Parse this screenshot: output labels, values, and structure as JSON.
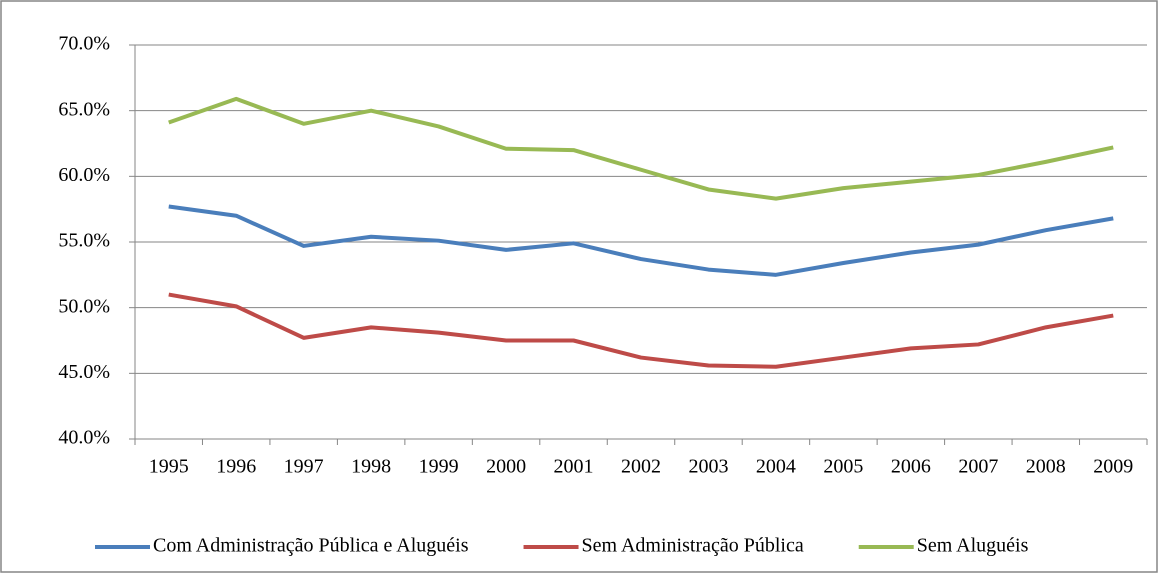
{
  "chart_data": {
    "type": "line",
    "categories": [
      "1995",
      "1996",
      "1997",
      "1998",
      "1999",
      "2000",
      "2001",
      "2002",
      "2003",
      "2004",
      "2005",
      "2006",
      "2007",
      "2008",
      "2009"
    ],
    "series": [
      {
        "name": "Com Administração Pública e Aluguéis",
        "color": "#4a7ebb",
        "values": [
          57.7,
          57.0,
          54.7,
          55.4,
          55.1,
          54.4,
          54.9,
          53.7,
          52.9,
          52.5,
          53.4,
          54.2,
          54.8,
          55.9,
          56.8
        ]
      },
      {
        "name": "Sem Administração Pública",
        "color": "#be4b48",
        "values": [
          51.0,
          50.1,
          47.7,
          48.5,
          48.1,
          47.5,
          47.5,
          46.2,
          45.6,
          45.5,
          46.2,
          46.9,
          47.2,
          48.5,
          49.4
        ]
      },
      {
        "name": "Sem Aluguéis",
        "color": "#98b954",
        "values": [
          64.1,
          65.9,
          64.0,
          65.0,
          63.8,
          62.1,
          62.0,
          60.5,
          59.0,
          58.3,
          59.1,
          59.6,
          60.1,
          61.1,
          62.2
        ]
      }
    ],
    "ylim": [
      40,
      70
    ],
    "yticks": [
      {
        "value": 40,
        "label": "40.0%"
      },
      {
        "value": 45,
        "label": "45.0%"
      },
      {
        "value": 50,
        "label": "50.0%"
      },
      {
        "value": 55,
        "label": "55.0%"
      },
      {
        "value": 60,
        "label": "60.0%"
      },
      {
        "value": 65,
        "label": "65.0%"
      },
      {
        "value": 70,
        "label": "70.0%"
      }
    ],
    "grid": true,
    "legend": "bottom"
  }
}
